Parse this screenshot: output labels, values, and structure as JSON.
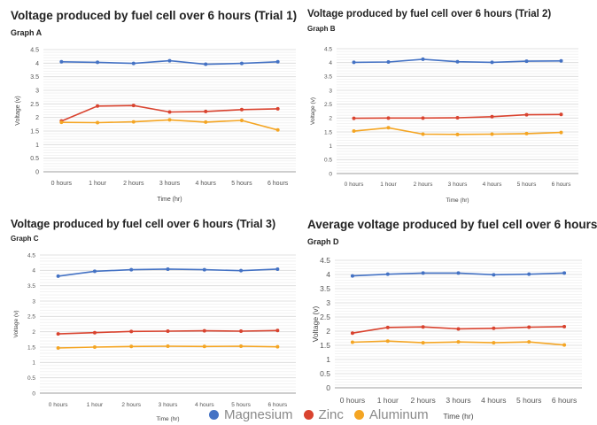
{
  "colors": {
    "magnesium": "#4472c4",
    "zinc": "#d9432f",
    "aluminum": "#f4a523"
  },
  "legend": [
    {
      "label": "Magnesium",
      "color": "#4472c4"
    },
    {
      "label": "Zinc",
      "color": "#d9432f"
    },
    {
      "label": "Aluminum",
      "color": "#f4a523"
    }
  ],
  "chart_data": [
    {
      "type": "line",
      "title": "Voltage produced by fuel cell over 6 hours (Trial 1)",
      "subtitle": "Graph A",
      "xlabel": "Time (hr)",
      "ylabel": "Voltage (v)",
      "categories": [
        "0 hours",
        "1 hour",
        "2 hours",
        "3 hours",
        "4 hours",
        "5 hours",
        "6 hours"
      ],
      "ylim": [
        0,
        4.5
      ],
      "yticks": [
        "0",
        "0.5",
        "1",
        "1.5",
        "2",
        "2.5",
        "3",
        "3.5",
        "4",
        "4.5"
      ],
      "grid": true,
      "series": [
        {
          "name": "Magnesium",
          "color": "#4472c4",
          "values": [
            4.05,
            4.03,
            3.99,
            4.09,
            3.96,
            3.99,
            4.05
          ]
        },
        {
          "name": "Zinc",
          "color": "#d9432f",
          "values": [
            1.87,
            2.42,
            2.44,
            2.2,
            2.22,
            2.29,
            2.32
          ]
        },
        {
          "name": "Aluminum",
          "color": "#f4a523",
          "values": [
            1.82,
            1.81,
            1.84,
            1.91,
            1.83,
            1.89,
            1.54
          ]
        }
      ]
    },
    {
      "type": "line",
      "title": "Voltage produced by fuel cell over 6 hours (Trial 2)",
      "subtitle": "Graph B",
      "xlabel": "Time (hr)",
      "ylabel": "Voltage (v)",
      "categories": [
        "0 hours",
        "1 hour",
        "2 hours",
        "3 hours",
        "4 hours",
        "5 hours",
        "6 hours"
      ],
      "ylim": [
        0,
        4.5
      ],
      "yticks": [
        "0",
        "0.5",
        "1",
        "1.5",
        "2",
        "2.5",
        "3",
        "3.5",
        "4",
        "4.5"
      ],
      "grid": true,
      "series": [
        {
          "name": "Magnesium",
          "color": "#4472c4",
          "values": [
            4.01,
            4.02,
            4.12,
            4.03,
            4.01,
            4.05,
            4.06
          ]
        },
        {
          "name": "Zinc",
          "color": "#d9432f",
          "values": [
            1.99,
            2.0,
            2.0,
            2.01,
            2.05,
            2.12,
            2.13
          ]
        },
        {
          "name": "Aluminum",
          "color": "#f4a523",
          "values": [
            1.53,
            1.65,
            1.42,
            1.41,
            1.42,
            1.44,
            1.48
          ]
        }
      ]
    },
    {
      "type": "line",
      "title": "Voltage produced by fuel cell over 6 hours (Trial 3)",
      "subtitle": "Graph C",
      "xlabel": "Time (hr)",
      "ylabel": "Voltage (v)",
      "categories": [
        "0 hours",
        "1 hour",
        "2 hours",
        "3 hours",
        "4 hours",
        "5 hours",
        "6 hours"
      ],
      "ylim": [
        0,
        4.5
      ],
      "yticks": [
        "0",
        "0.5",
        "1",
        "1.5",
        "2",
        "2.5",
        "3",
        "3.5",
        "4",
        "4.5"
      ],
      "grid": true,
      "series": [
        {
          "name": "Magnesium",
          "color": "#4472c4",
          "values": [
            3.81,
            3.97,
            4.02,
            4.04,
            4.02,
            3.99,
            4.04
          ]
        },
        {
          "name": "Zinc",
          "color": "#d9432f",
          "values": [
            1.93,
            1.97,
            2.01,
            2.02,
            2.03,
            2.02,
            2.04
          ]
        },
        {
          "name": "Aluminum",
          "color": "#f4a523",
          "values": [
            1.47,
            1.5,
            1.52,
            1.53,
            1.52,
            1.53,
            1.51
          ]
        }
      ]
    },
    {
      "type": "line",
      "title": "Average voltage produced by fuel cell over 6 hours",
      "subtitle": "Graph D",
      "xlabel": "Time (hr)",
      "ylabel": "Voltage (v)",
      "categories": [
        "0 hours",
        "1 hour",
        "2 hours",
        "3 hours",
        "4 hours",
        "5 hours",
        "6 hours"
      ],
      "ylim": [
        0,
        4.5
      ],
      "yticks": [
        "0",
        "0.5",
        "1",
        "1.5",
        "2",
        "2.5",
        "3",
        "3.5",
        "4",
        "4.5"
      ],
      "grid": true,
      "series": [
        {
          "name": "Magnesium",
          "color": "#4472c4",
          "values": [
            3.95,
            4.01,
            4.05,
            4.05,
            3.99,
            4.01,
            4.05
          ]
        },
        {
          "name": "Zinc",
          "color": "#d9432f",
          "values": [
            1.93,
            2.13,
            2.15,
            2.08,
            2.1,
            2.14,
            2.16
          ]
        },
        {
          "name": "Aluminum",
          "color": "#f4a523",
          "values": [
            1.61,
            1.65,
            1.59,
            1.62,
            1.59,
            1.62,
            1.51
          ]
        }
      ]
    }
  ]
}
